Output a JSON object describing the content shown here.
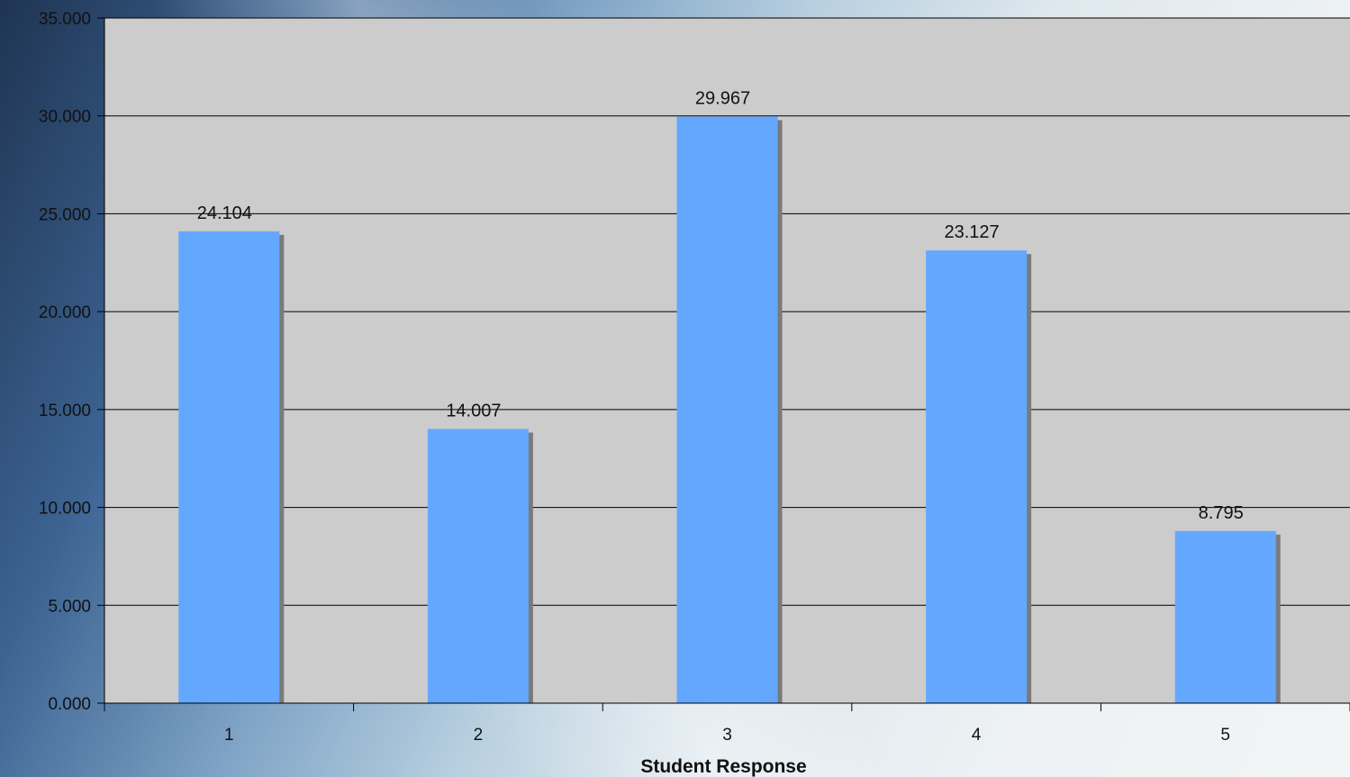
{
  "chart_data": {
    "type": "bar",
    "categories": [
      "1",
      "2",
      "3",
      "4",
      "5"
    ],
    "values": [
      24.104,
      14.007,
      29.967,
      23.127,
      8.795
    ],
    "data_labels": [
      "24.104",
      "14.007",
      "29.967",
      "23.127",
      "8.795"
    ],
    "title": "",
    "xlabel": "Student Response",
    "ylabel": "",
    "ylim": [
      0,
      35
    ],
    "y_tick_values": [
      0,
      5,
      10,
      15,
      20,
      25,
      30,
      35
    ],
    "y_tick_labels": [
      "0.000",
      "5.000",
      "10.000",
      "15.000",
      "20.000",
      "25.000",
      "30.000",
      "35.000"
    ],
    "grid": true,
    "legend": "none",
    "colors": {
      "bar": "#63a8fe",
      "bar_shadow": "#7a7a7a",
      "plot_background": "#cccccc",
      "gridline": "#000000"
    }
  }
}
